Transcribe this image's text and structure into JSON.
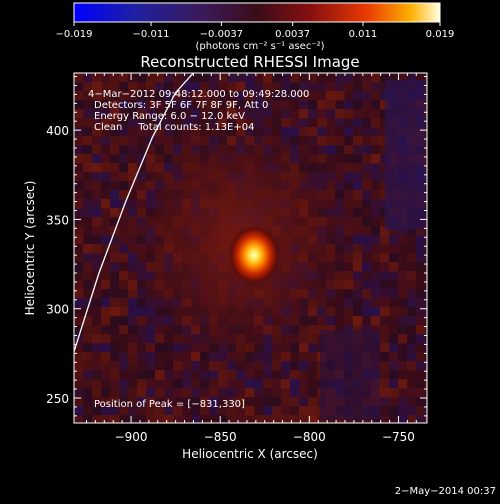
{
  "chart_data": {
    "type": "heatmap",
    "title": "Reconstructed RHESSI Image",
    "xlabel": "Heliocentric X (arcsec)",
    "ylabel": "Heliocentric Y (arcsec)",
    "xlim": [
      -932,
      -734
    ],
    "ylim": [
      236,
      432
    ],
    "x_ticks": [
      -900,
      -850,
      -800,
      -750
    ],
    "y_ticks": [
      250,
      300,
      350,
      400
    ],
    "x_tick_labels": [
      "−900",
      "−850",
      "−800",
      "−750"
    ],
    "y_tick_labels": [
      "250",
      "300",
      "350",
      "400"
    ],
    "colorbar": {
      "range": [
        -0.019,
        0.019
      ],
      "ticks": [
        -0.019,
        -0.011,
        -0.0037,
        0.0037,
        0.011,
        0.019
      ],
      "tick_labels": [
        "−0.019",
        "−0.011",
        "−0.0037",
        "0.0037",
        "0.011",
        "0.019"
      ],
      "units_label": "(photons cm⁻² s⁻¹ asec⁻²)"
    },
    "peak": {
      "x": -831,
      "y": 330,
      "value": 0.019
    },
    "limb_curve": [
      [
        -932,
        276
      ],
      [
        -918,
        320
      ],
      [
        -903,
        360
      ],
      [
        -888,
        396
      ],
      [
        -875,
        421
      ],
      [
        -865,
        432
      ]
    ],
    "annotations": [
      "4−Mar−2012 09:48:12.000 to 09:49:28.000",
      "Detectors: 3F 5F 6F 7F 8F 9F, Att 0",
      "Energy Range: 6.0 − 12.0 keV",
      "Clean     Total counts: 1.13E+04"
    ],
    "peak_label": "Position of Peak = [−831,330]",
    "grid": false
  },
  "footer": {
    "date": "2−May−2014 00:37"
  }
}
